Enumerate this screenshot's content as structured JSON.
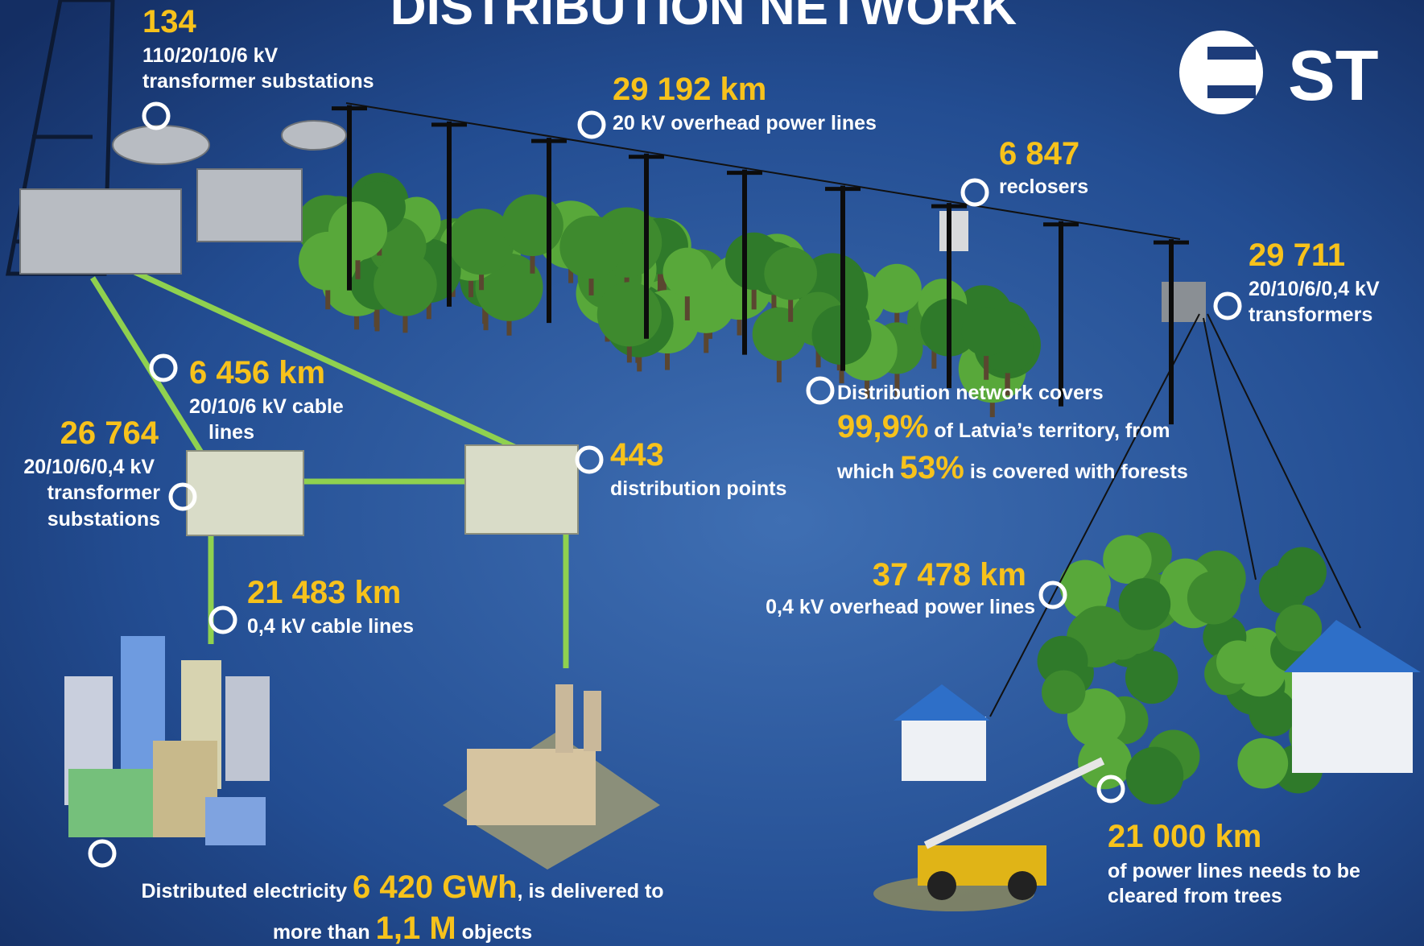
{
  "title": "DISTRIBUTION NETWORK",
  "logo": "ST",
  "substations_110": {
    "value": "134",
    "label_1": "110/20/10/6 kV",
    "label_2": "transformer substations"
  },
  "overhead_20kv": {
    "value": "29 192 km",
    "label": "20 kV overhead power lines"
  },
  "reclosers": {
    "value": "6 847",
    "label": "reclosers"
  },
  "transformers": {
    "value": "29 711",
    "label_1": "20/10/6/0,4 kV",
    "label_2": "transformers"
  },
  "cable_20kv": {
    "value": "6 456 km",
    "label_1": "20/10/6 kV cable",
    "label_2": "lines"
  },
  "transformer_substations": {
    "value": "26 764",
    "label_1": "20/10/6/0,4 kV",
    "label_2": "transformer",
    "label_3": "substations"
  },
  "distribution_points": {
    "value": "443",
    "label": "distribution points"
  },
  "coverage": {
    "line_1": "Distribution network covers",
    "value_1": "99,9%",
    "text_1": "of Latvia’s territory, from",
    "text_2": "which",
    "value_2": "53%",
    "text_3": "is covered with forests"
  },
  "overhead_04kv": {
    "value": "37 478 km",
    "label": "0,4 kV overhead power lines"
  },
  "cable_04kv": {
    "value": "21 483 km",
    "label": "0,4 kV cable lines"
  },
  "clearing": {
    "value": "21 000 km",
    "label_1": "of power lines needs to be",
    "label_2": "cleared from trees"
  },
  "electricity": {
    "text_1": "Distributed electricity",
    "value_1": "6 420 GWh",
    "text_2": ", is delivered to",
    "text_3": "more than",
    "value_2": "1,1 M",
    "text_4": "objects"
  }
}
